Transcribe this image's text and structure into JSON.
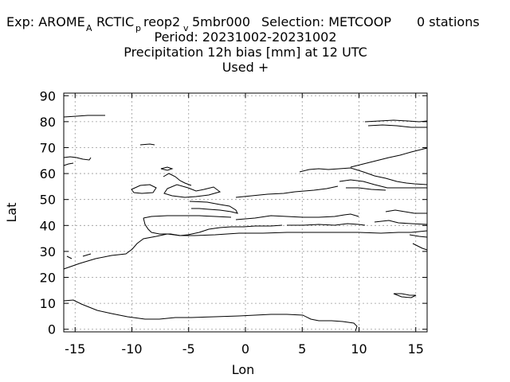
{
  "chart_data": {
    "type": "map",
    "title": {
      "line1": {
        "exp_label": "Exp: AROME",
        "sub_A": "A",
        "arctic": "RCTIC",
        "sub_p": "p",
        "reop2": "reop2",
        "sub_v": "v",
        "mbr": "5mbr000",
        "selection": "Selection: METCOOP",
        "stations": "0 stations"
      },
      "line2": "Period: 20231002-20231002",
      "line3": "Precipitation 12h bias [mm] at  12 UTC",
      "line4": "Used   +"
    },
    "xlabel": "Lon",
    "ylabel": "Lat",
    "xlim": [
      -16,
      16
    ],
    "ylim": [
      -1,
      91
    ],
    "xticks": [
      -15,
      -10,
      -5,
      0,
      5,
      10,
      15
    ],
    "yticks": [
      0,
      10,
      20,
      30,
      40,
      50,
      60,
      70,
      80,
      90
    ],
    "grid": true,
    "series": []
  }
}
